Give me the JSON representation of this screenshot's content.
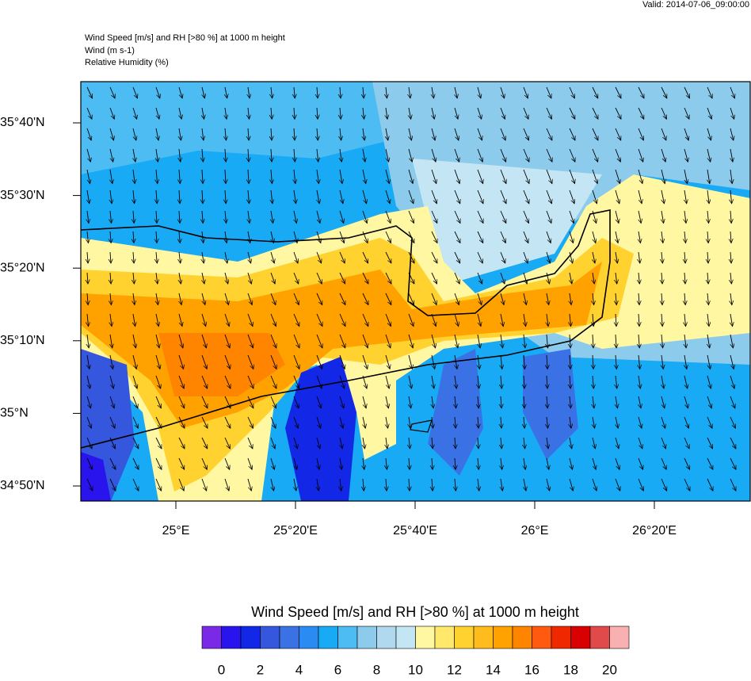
{
  "header": {
    "valid": "Valid: 2014-07-06_09:00:00",
    "title_lines": [
      "Wind Speed [m/s] and RH [>80 %] at 1000 m height",
      "Wind   (m s-1)",
      "Relative Humidity   (%)"
    ]
  },
  "axes": {
    "lat_labels": [
      "35°40'N",
      "35°30'N",
      "35°20'N",
      "35°10'N",
      "35°N",
      "34°50'N"
    ],
    "lon_labels": [
      "25°E",
      "25°20'E",
      "25°40'E",
      "26°E",
      "26°20'E"
    ]
  },
  "colorbar": {
    "title": "Wind Speed [m/s] and RH [>80 %] at 1000 m height",
    "labels": [
      0,
      2,
      4,
      6,
      8,
      10,
      12,
      14,
      16,
      18,
      20
    ],
    "colors": [
      "#7a2ae6",
      "#2a14ee",
      "#1228e6",
      "#3457de",
      "#3a72e6",
      "#2a8cf2",
      "#18aaf5",
      "#4cbcf2",
      "#8ccbec",
      "#b0d8ee",
      "#c4e6f4",
      "#fff7a2",
      "#ffe86a",
      "#ffd230",
      "#ffbc1c",
      "#ffa200",
      "#ff8400",
      "#ff5a10",
      "#f02800",
      "#d80000",
      "#e04a4a",
      "#f8b0b0"
    ]
  }
}
